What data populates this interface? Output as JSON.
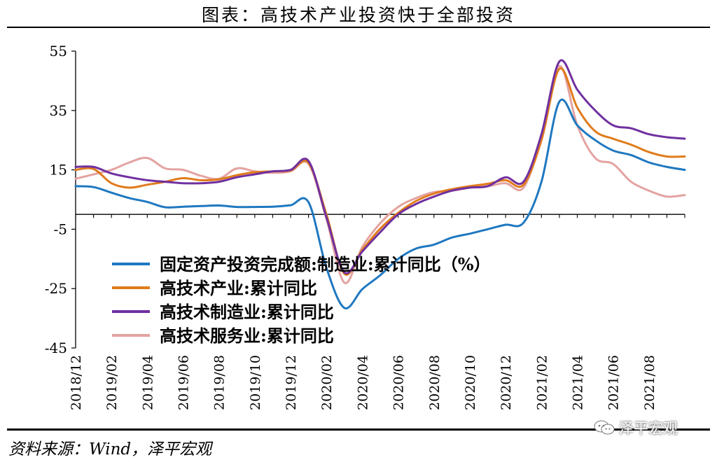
{
  "title": "图表：高技术产业投资快于全部投资",
  "source": "资料来源：Wind，泽平宏观",
  "watermark": "泽平宏观",
  "watermark_icon": "wechat-icon",
  "chart_data": {
    "type": "line",
    "title": "图表：高技术产业投资快于全部投资",
    "ylim": [
      -45,
      55
    ],
    "yticks": [
      55,
      35,
      15,
      -5,
      -25,
      -45
    ],
    "xlim": [
      0,
      34
    ],
    "xtick_labels": [
      {
        "x": 0,
        "label": "2018/12"
      },
      {
        "x": 2,
        "label": "2019/02"
      },
      {
        "x": 4,
        "label": "2019/04"
      },
      {
        "x": 6,
        "label": "2019/06"
      },
      {
        "x": 8,
        "label": "2019/08"
      },
      {
        "x": 10,
        "label": "2019/10"
      },
      {
        "x": 12,
        "label": "2019/12"
      },
      {
        "x": 14,
        "label": "2020/02"
      },
      {
        "x": 16,
        "label": "2020/04"
      },
      {
        "x": 18,
        "label": "2020/06"
      },
      {
        "x": 20,
        "label": "2020/08"
      },
      {
        "x": 22,
        "label": "2020/10"
      },
      {
        "x": 24,
        "label": "2020/12"
      },
      {
        "x": 26,
        "label": "2021/02"
      },
      {
        "x": 28,
        "label": "2021/04"
      },
      {
        "x": 30,
        "label": "2021/06"
      },
      {
        "x": 32,
        "label": "2021/08"
      }
    ],
    "legend": "center-left",
    "grid": false,
    "series": [
      {
        "name": "固定资产投资完成额:制造业:累计同比（%）",
        "color": "#1f78c0",
        "points": [
          [
            0,
            9.5
          ],
          [
            1,
            9.2
          ],
          [
            2,
            7.3
          ],
          [
            3,
            5.5
          ],
          [
            4,
            4.2
          ],
          [
            5,
            2.4
          ],
          [
            6,
            2.6
          ],
          [
            7,
            2.8
          ],
          [
            8,
            3.0
          ],
          [
            9,
            2.5
          ],
          [
            10,
            2.5
          ],
          [
            11,
            2.6
          ],
          [
            12,
            3.1
          ],
          [
            13,
            4.1
          ],
          [
            14,
            -18.0
          ],
          [
            15,
            -31.5
          ],
          [
            16,
            -25.2
          ],
          [
            17,
            -20.5
          ],
          [
            18,
            -15.0
          ],
          [
            19,
            -11.5
          ],
          [
            20,
            -10.2
          ],
          [
            21,
            -7.8
          ],
          [
            22,
            -6.5
          ],
          [
            23,
            -5.0
          ],
          [
            24,
            -3.5
          ],
          [
            25,
            -2.8
          ],
          [
            26,
            11.0
          ],
          [
            27,
            38.0
          ],
          [
            28,
            30.0
          ],
          [
            29,
            25.0
          ],
          [
            30,
            21.5
          ],
          [
            31,
            20.0
          ],
          [
            32,
            17.5
          ],
          [
            33,
            16.0
          ],
          [
            34,
            15.0
          ]
        ]
      },
      {
        "name": "高技术产业:累计同比",
        "color": "#e07b1b",
        "points": [
          [
            0,
            15.0
          ],
          [
            1,
            15.3
          ],
          [
            2,
            10.5
          ],
          [
            3,
            9.0
          ],
          [
            4,
            10.0
          ],
          [
            5,
            11.0
          ],
          [
            6,
            12.2
          ],
          [
            7,
            11.5
          ],
          [
            8,
            11.8
          ],
          [
            9,
            13.2
          ],
          [
            10,
            14.2
          ],
          [
            11,
            14.5
          ],
          [
            12,
            14.8
          ],
          [
            13,
            17.3
          ],
          [
            14,
            0.0
          ],
          [
            15,
            -20.0
          ],
          [
            16,
            -12.0
          ],
          [
            17,
            -4.8
          ],
          [
            18,
            0.5
          ],
          [
            19,
            4.5
          ],
          [
            20,
            7.0
          ],
          [
            21,
            8.5
          ],
          [
            22,
            9.5
          ],
          [
            23,
            10.3
          ],
          [
            24,
            11.5
          ],
          [
            25,
            10.0
          ],
          [
            26,
            25.0
          ],
          [
            27,
            49.0
          ],
          [
            28,
            36.0
          ],
          [
            29,
            28.0
          ],
          [
            30,
            25.5
          ],
          [
            31,
            23.5
          ],
          [
            32,
            21.0
          ],
          [
            33,
            19.5
          ],
          [
            34,
            19.5
          ]
        ]
      },
      {
        "name": "高技术制造业:累计同比",
        "color": "#7030a0",
        "points": [
          [
            0,
            16.0
          ],
          [
            1,
            16.0
          ],
          [
            2,
            13.8
          ],
          [
            3,
            12.5
          ],
          [
            4,
            11.5
          ],
          [
            5,
            11.0
          ],
          [
            6,
            10.5
          ],
          [
            7,
            10.5
          ],
          [
            8,
            11.0
          ],
          [
            9,
            12.5
          ],
          [
            10,
            13.5
          ],
          [
            11,
            14.5
          ],
          [
            12,
            15.0
          ],
          [
            13,
            18.0
          ],
          [
            14,
            -1.0
          ],
          [
            15,
            -19.5
          ],
          [
            16,
            -12.5
          ],
          [
            17,
            -6.0
          ],
          [
            18,
            0.0
          ],
          [
            19,
            3.5
          ],
          [
            20,
            6.0
          ],
          [
            21,
            8.0
          ],
          [
            22,
            9.0
          ],
          [
            23,
            9.5
          ],
          [
            24,
            12.5
          ],
          [
            25,
            11.0
          ],
          [
            26,
            27.0
          ],
          [
            27,
            51.5
          ],
          [
            28,
            42.0
          ],
          [
            29,
            35.0
          ],
          [
            30,
            30.0
          ],
          [
            31,
            29.0
          ],
          [
            32,
            27.0
          ],
          [
            33,
            26.0
          ],
          [
            34,
            25.5
          ]
        ]
      },
      {
        "name": "高技术服务业:累计同比",
        "color": "#e3a3a1",
        "points": [
          [
            0,
            12.0
          ],
          [
            1,
            13.5
          ],
          [
            2,
            15.0
          ],
          [
            3,
            17.5
          ],
          [
            4,
            19.0
          ],
          [
            5,
            15.5
          ],
          [
            6,
            15.0
          ],
          [
            7,
            13.0
          ],
          [
            8,
            12.0
          ],
          [
            9,
            15.5
          ],
          [
            10,
            14.5
          ],
          [
            11,
            14.0
          ],
          [
            12,
            14.5
          ],
          [
            13,
            17.0
          ],
          [
            14,
            -1.5
          ],
          [
            15,
            -23.0
          ],
          [
            16,
            -11.0
          ],
          [
            17,
            -3.0
          ],
          [
            18,
            2.5
          ],
          [
            19,
            5.5
          ],
          [
            20,
            7.5
          ],
          [
            21,
            8.0
          ],
          [
            22,
            9.0
          ],
          [
            23,
            9.5
          ],
          [
            24,
            10.5
          ],
          [
            25,
            9.0
          ],
          [
            26,
            26.0
          ],
          [
            27,
            50.0
          ],
          [
            28,
            30.0
          ],
          [
            29,
            19.0
          ],
          [
            30,
            17.0
          ],
          [
            31,
            11.0
          ],
          [
            32,
            8.0
          ],
          [
            33,
            6.0
          ],
          [
            34,
            6.5
          ]
        ]
      }
    ]
  }
}
